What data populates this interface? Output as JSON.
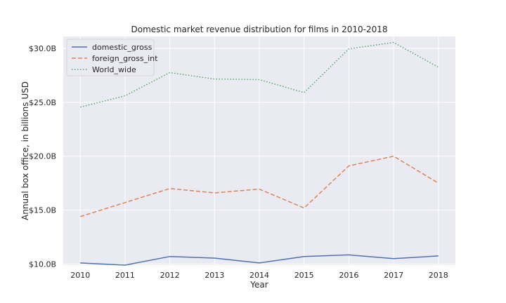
{
  "chart_data": {
    "type": "line",
    "title": "Domestic market revenue distribution for films in 2010-2018",
    "xlabel": "Year",
    "ylabel": "Annual box office, in billions USD",
    "categories": [
      "2010",
      "2011",
      "2012",
      "2013",
      "2014",
      "2015",
      "2016",
      "2017",
      "2018"
    ],
    "x": [
      2010,
      2011,
      2012,
      2013,
      2014,
      2015,
      2016,
      2017,
      2018
    ],
    "ylim": [
      9.9,
      31.1
    ],
    "yticks": [
      10,
      15,
      20,
      25,
      30
    ],
    "ytick_labels": [
      "$10.0B",
      "$15.0B",
      "$20.0B",
      "$25.0B",
      "$30.0B"
    ],
    "grid": true,
    "legend_position": "top-left",
    "series": [
      {
        "name": "domestic_gross",
        "color": "#4c72b0",
        "style": "solid",
        "values": [
          10.1,
          9.9,
          10.7,
          10.55,
          10.1,
          10.7,
          10.85,
          10.5,
          10.75
        ]
      },
      {
        "name": "foreign_gross_int",
        "color": "#dd8452",
        "style": "dashed",
        "values": [
          14.4,
          15.7,
          17.0,
          16.6,
          16.95,
          15.2,
          19.1,
          20.0,
          17.5
        ]
      },
      {
        "name": "World_wide",
        "color": "#55a868",
        "style": "dotted",
        "values": [
          24.55,
          25.6,
          27.75,
          27.15,
          27.1,
          25.9,
          29.95,
          30.55,
          28.25
        ]
      }
    ]
  }
}
